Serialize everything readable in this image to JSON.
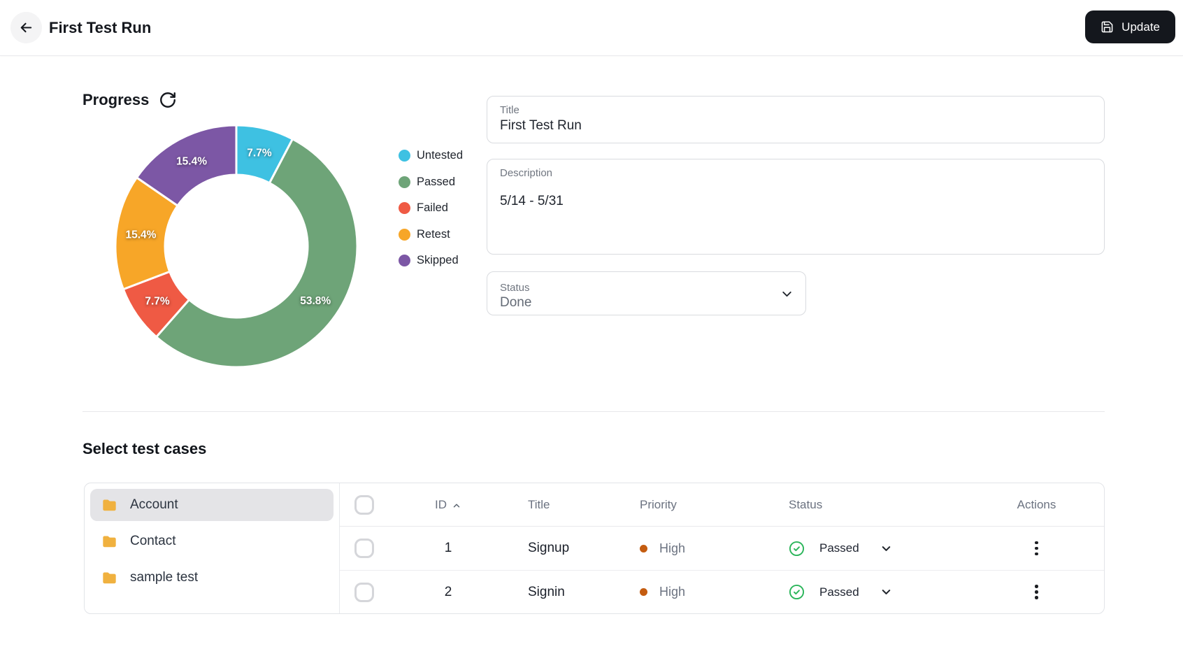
{
  "header": {
    "title": "First Test Run",
    "update_label": "Update"
  },
  "progress": {
    "heading": "Progress"
  },
  "chart_data": {
    "type": "pie",
    "variant": "donut",
    "title": "Progress",
    "labels": [
      "Untested",
      "Passed",
      "Failed",
      "Retest",
      "Skipped"
    ],
    "values": [
      7.7,
      53.8,
      7.7,
      15.4,
      15.4
    ],
    "display_labels": [
      "7.7%",
      "53.8%",
      "7.7%",
      "15.4%",
      "15.4%"
    ],
    "colors": [
      "#3ec1e2",
      "#6ea478",
      "#ef5a44",
      "#f7a628",
      "#7c57a5"
    ],
    "start_angle_deg": 0,
    "clockwise": true,
    "inner_radius_ratio": 0.59,
    "label_position": "inside",
    "legend_position": "right"
  },
  "form": {
    "title_field": {
      "label": "Title",
      "value": "First Test Run"
    },
    "description_field": {
      "label": "Description",
      "value": "5/14 - 5/31"
    },
    "status_field": {
      "label": "Status",
      "value": "Done"
    }
  },
  "test_cases": {
    "heading": "Select test cases",
    "folders": [
      {
        "name": "Account",
        "selected": true
      },
      {
        "name": "Contact",
        "selected": false
      },
      {
        "name": "sample test",
        "selected": false
      }
    ],
    "table": {
      "columns": {
        "id": "ID",
        "title": "Title",
        "priority": "Priority",
        "status": "Status",
        "actions": "Actions"
      },
      "sort": {
        "column": "ID",
        "direction": "asc"
      },
      "rows": [
        {
          "id": "1",
          "title": "Signup",
          "priority": "High",
          "priority_color": "#c45c10",
          "status": "Passed",
          "status_color": "#2bb55a"
        },
        {
          "id": "2",
          "title": "Signin",
          "priority": "High",
          "priority_color": "#c45c10",
          "status": "Passed",
          "status_color": "#2bb55a"
        }
      ]
    }
  }
}
